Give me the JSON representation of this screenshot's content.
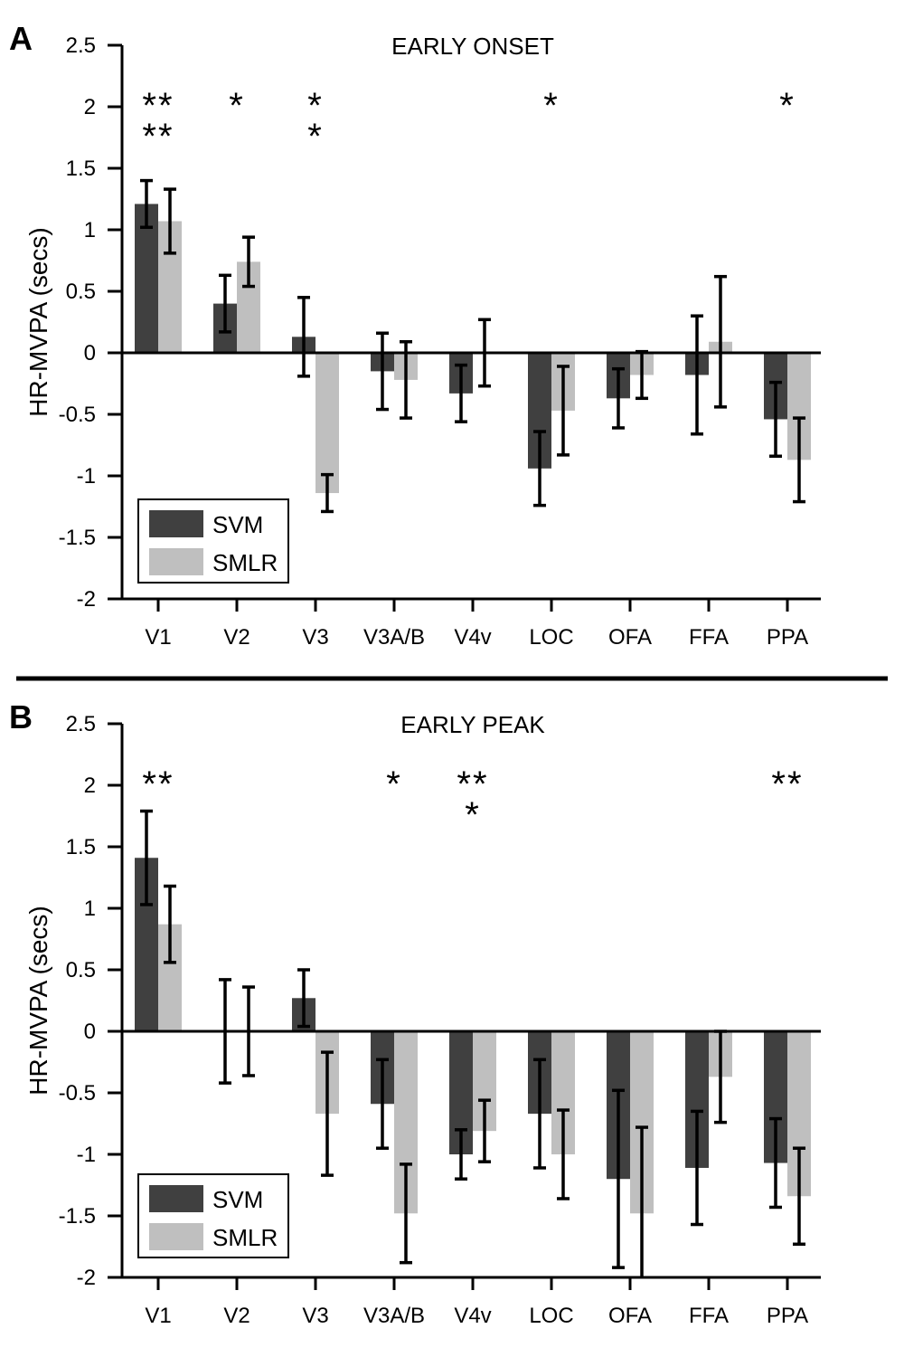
{
  "chart_data": [
    {
      "panel_label": "A",
      "type": "bar",
      "title": "EARLY ONSET",
      "ylabel": "HR-MVPA (secs)",
      "xlabel": "",
      "ylim": [
        -2,
        2.5
      ],
      "yticks": [
        "2.5",
        "2",
        "1.5",
        "1",
        "0.5",
        "0",
        "-0.5",
        "-1",
        "-1.5",
        "-2"
      ],
      "categories": [
        "V1",
        "V2",
        "V3",
        "V3A/B",
        "V4v",
        "LOC",
        "OFA",
        "FFA",
        "PPA"
      ],
      "series": [
        {
          "name": "SVM",
          "color": "#404040",
          "values": [
            1.21,
            0.4,
            0.13,
            -0.15,
            -0.33,
            -0.94,
            -0.37,
            -0.18,
            -0.54
          ],
          "error": [
            0.19,
            0.23,
            0.32,
            0.31,
            0.23,
            0.3,
            0.24,
            0.48,
            0.3
          ]
        },
        {
          "name": "SMLR",
          "color": "#bfbfbf",
          "values": [
            1.07,
            0.74,
            -1.14,
            -0.22,
            0.0,
            -0.47,
            -0.18,
            0.09,
            -0.87
          ],
          "error": [
            0.26,
            0.2,
            0.15,
            0.31,
            0.27,
            0.36,
            0.19,
            0.53,
            0.34
          ]
        }
      ],
      "significance": [
        {
          "category": "V1",
          "rows": [
            "**",
            "**"
          ]
        },
        {
          "category": "V2",
          "rows": [
            "*"
          ]
        },
        {
          "category": "V3",
          "rows": [
            "*",
            "*"
          ]
        },
        {
          "category": "LOC",
          "rows": [
            "*"
          ]
        },
        {
          "category": "PPA",
          "rows": [
            "*"
          ]
        }
      ],
      "legend": {
        "position": "bottom-left",
        "entries": [
          "SVM",
          "SMLR"
        ]
      },
      "grid": false
    },
    {
      "panel_label": "B",
      "type": "bar",
      "title": "EARLY PEAK",
      "ylabel": "HR-MVPA (secs)",
      "xlabel": "",
      "ylim": [
        -2,
        2.5
      ],
      "yticks": [
        "2.5",
        "2",
        "1.5",
        "1",
        "0.5",
        "0",
        "-0.5",
        "-1",
        "-1.5",
        "-2"
      ],
      "categories": [
        "V1",
        "V2",
        "V3",
        "V3A/B",
        "V4v",
        "LOC",
        "OFA",
        "FFA",
        "PPA"
      ],
      "series": [
        {
          "name": "SVM",
          "color": "#404040",
          "values": [
            1.41,
            0.0,
            0.27,
            -0.59,
            -1.0,
            -0.67,
            -1.2,
            -1.11,
            -1.07
          ],
          "error": [
            0.38,
            0.42,
            0.23,
            0.36,
            0.2,
            0.44,
            0.72,
            0.46,
            0.36
          ]
        },
        {
          "name": "SMLR",
          "color": "#bfbfbf",
          "values": [
            0.87,
            0.0,
            -0.67,
            -1.48,
            -0.81,
            -1.0,
            -1.48,
            -0.37,
            -1.34
          ],
          "error": [
            0.31,
            0.36,
            0.5,
            0.4,
            0.25,
            0.36,
            0.7,
            0.37,
            0.39
          ]
        }
      ],
      "significance": [
        {
          "category": "V1",
          "rows": [
            "**"
          ]
        },
        {
          "category": "V3A/B",
          "rows": [
            "*"
          ]
        },
        {
          "category": "V4v",
          "rows": [
            "**",
            "*"
          ]
        },
        {
          "category": "PPA",
          "rows": [
            "**"
          ]
        }
      ],
      "legend": {
        "position": "bottom-left",
        "entries": [
          "SVM",
          "SMLR"
        ]
      },
      "grid": false
    }
  ]
}
